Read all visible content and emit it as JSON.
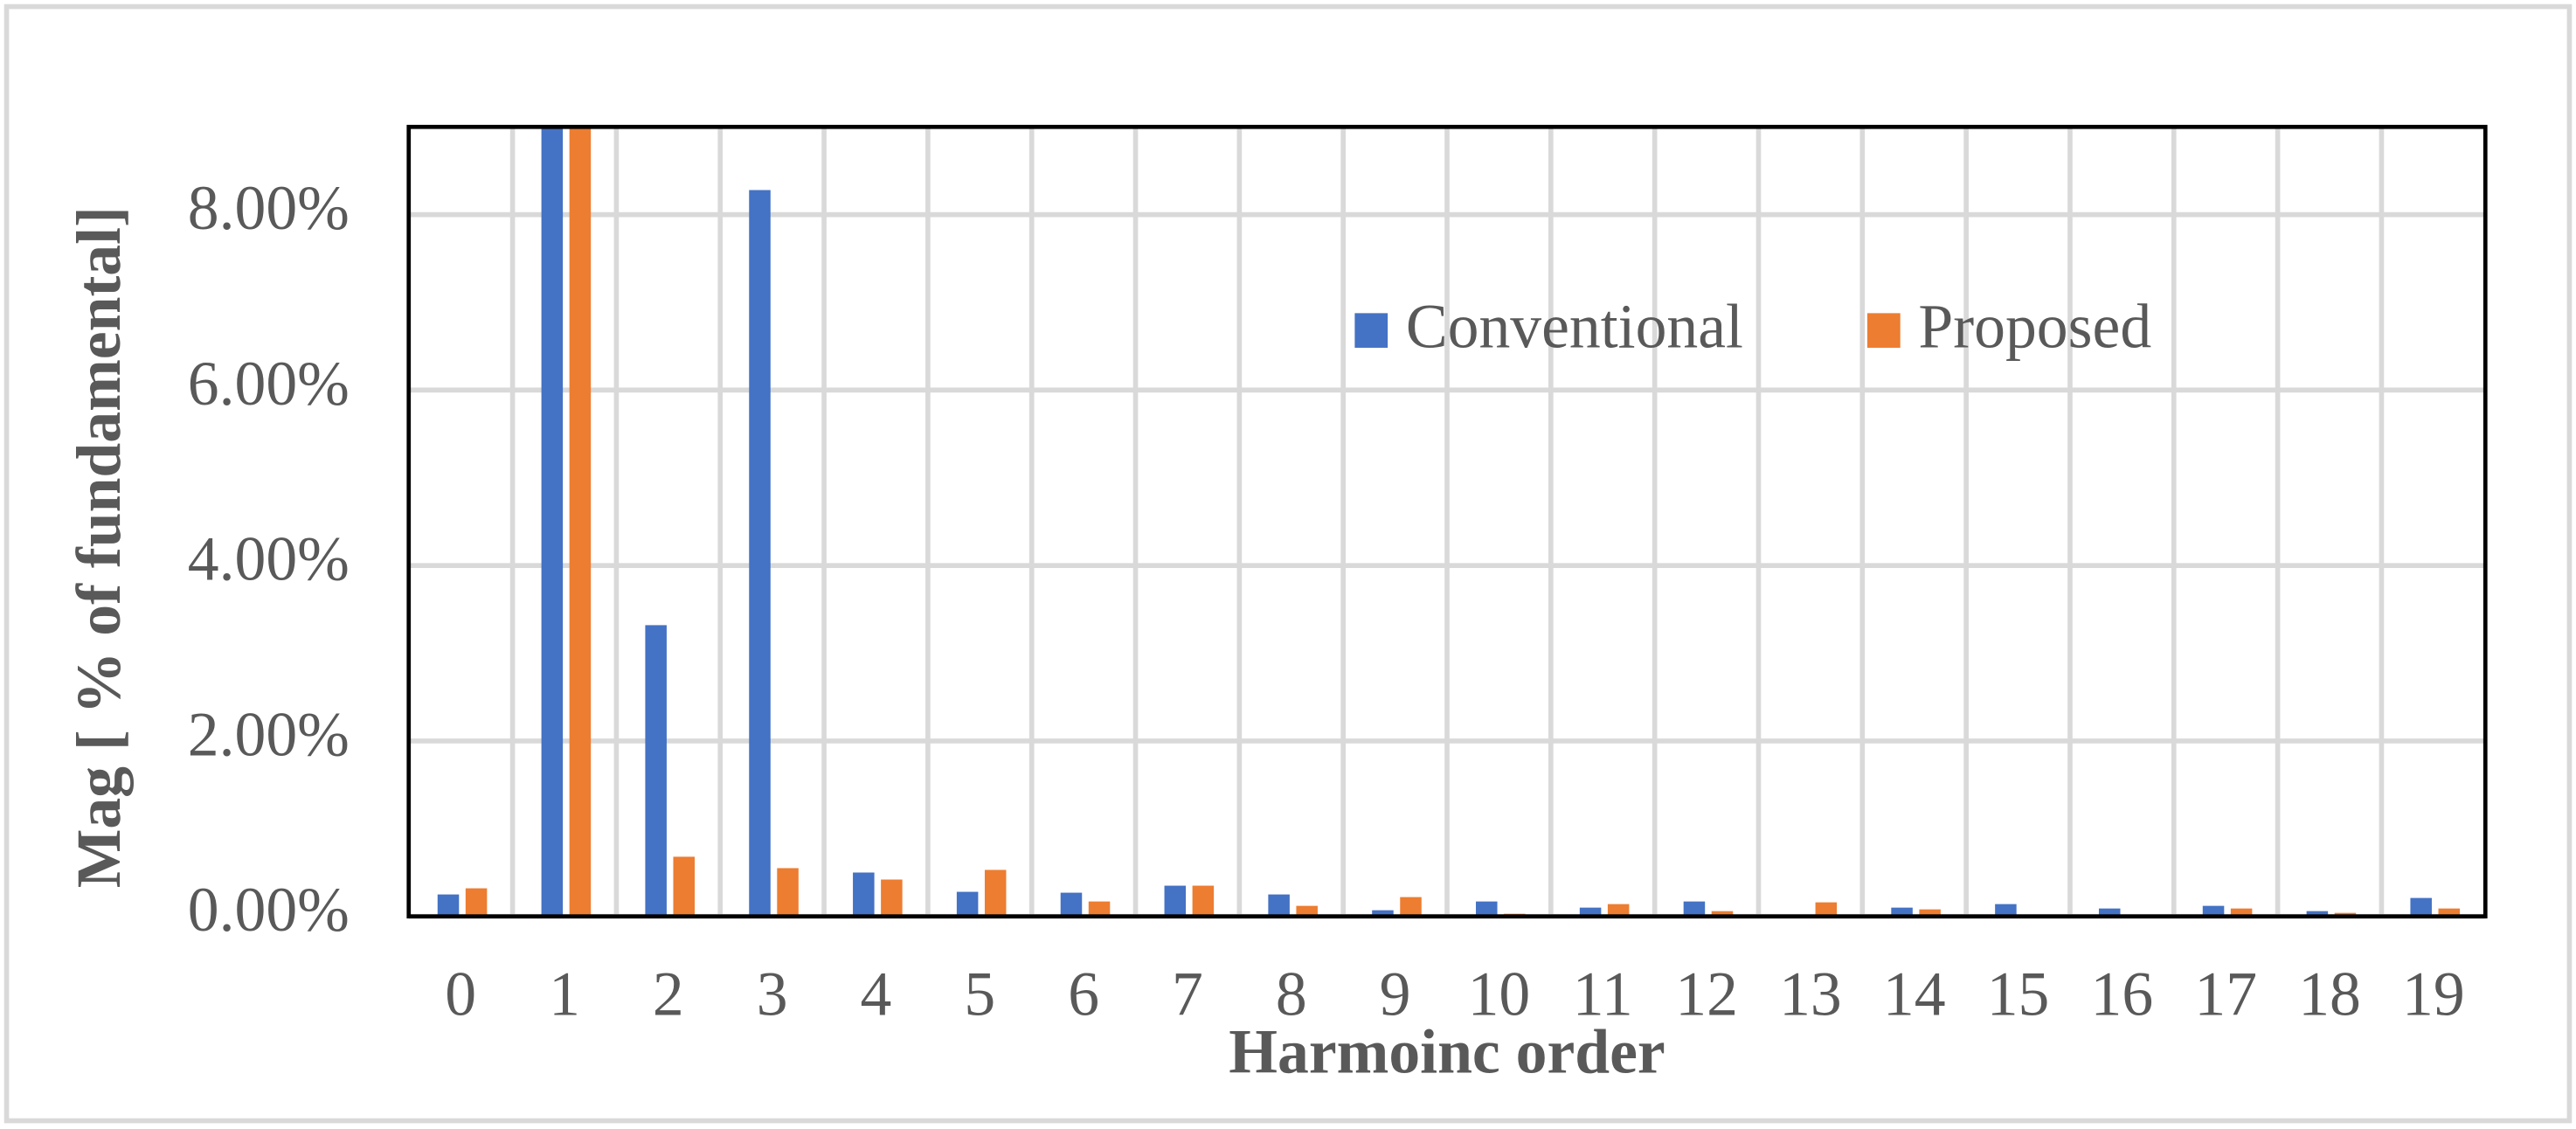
{
  "chart_data": {
    "type": "bar",
    "xlabel": "Harmoinc order",
    "ylabel": "Mag [ % of fundamental]",
    "categories": [
      "0",
      "1",
      "2",
      "3",
      "4",
      "5",
      "6",
      "7",
      "8",
      "9",
      "10",
      "11",
      "12",
      "13",
      "14",
      "15",
      "16",
      "17",
      "18",
      "19"
    ],
    "series": [
      {
        "name": "Conventional",
        "color": "#4472c4",
        "values": [
          0.25,
          9,
          3.32,
          8.28,
          0.5,
          0.28,
          0.27,
          0.35,
          0.25,
          0.07,
          0.17,
          0.1,
          0.17,
          0.0,
          0.1,
          0.14,
          0.09,
          0.12,
          0.06,
          0.21
        ]
      },
      {
        "name": "Proposed",
        "color": "#ed7d31",
        "values": [
          0.32,
          9,
          0.68,
          0.55,
          0.42,
          0.53,
          0.17,
          0.35,
          0.12,
          0.22,
          0.03,
          0.14,
          0.06,
          0.16,
          0.08,
          0.0,
          0.0,
          0.09,
          0.04,
          0.09
        ]
      }
    ],
    "ylim": [
      0,
      9
    ],
    "yticks": [
      {
        "value": 0,
        "label": "0.00%"
      },
      {
        "value": 2,
        "label": "2.00%"
      },
      {
        "value": 4,
        "label": "4.00%"
      },
      {
        "value": 6,
        "label": "6.00%"
      },
      {
        "value": 8,
        "label": "8.00%"
      }
    ],
    "grid": true
  }
}
